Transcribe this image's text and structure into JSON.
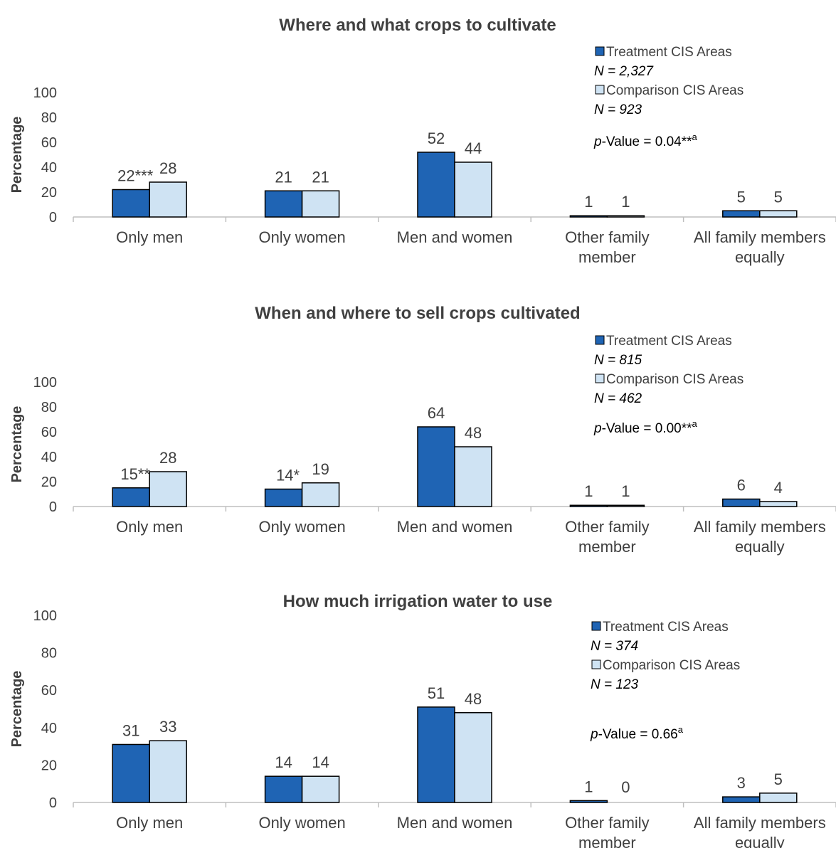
{
  "colors": {
    "treatment": "#1f64b4",
    "comparison": "#cfe3f3",
    "axis": "#bfbfbf",
    "bar_outline": "#000000"
  },
  "chart_data": [
    {
      "type": "bar",
      "title": "Where and what crops to cultivate",
      "ylabel": "Percentage",
      "ylim": [
        0,
        100
      ],
      "yticks": [
        "0",
        "20",
        "40",
        "60",
        "80",
        "100"
      ],
      "categories": [
        [
          "Only men"
        ],
        [
          "Only women"
        ],
        [
          "Men and women"
        ],
        [
          "Other family",
          "member"
        ],
        [
          "All family members",
          "equally"
        ]
      ],
      "series": [
        {
          "name": "Treatment CIS Areas",
          "n": "N = 2,327",
          "values": [
            22,
            21,
            52,
            1,
            5
          ],
          "labels": [
            "22***",
            "21",
            "52",
            "1",
            "5"
          ]
        },
        {
          "name": "Comparison CIS Areas",
          "n": "N = 923",
          "values": [
            28,
            21,
            44,
            1,
            5
          ],
          "labels": [
            "28",
            "21",
            "44",
            "1",
            "5"
          ]
        }
      ],
      "p_value": {
        "prefix": "p",
        "text": "-Value = 0.04**",
        "sup": "a"
      },
      "legend": "top-right"
    },
    {
      "type": "bar",
      "title": "When and where to sell crops cultivated",
      "ylabel": "Percentage",
      "ylim": [
        0,
        100
      ],
      "yticks": [
        "0",
        "20",
        "40",
        "60",
        "80",
        "100"
      ],
      "categories": [
        [
          "Only men"
        ],
        [
          "Only women"
        ],
        [
          "Men and women"
        ],
        [
          "Other family",
          "member"
        ],
        [
          "All family members",
          "equally"
        ]
      ],
      "series": [
        {
          "name": "Treatment CIS Areas",
          "n": "N = 815",
          "values": [
            15,
            14,
            64,
            1,
            6
          ],
          "labels": [
            "15**",
            "14*",
            "64",
            "1",
            "6"
          ]
        },
        {
          "name": "Comparison CIS Areas",
          "n": "N = 462",
          "values": [
            28,
            19,
            48,
            1,
            4
          ],
          "labels": [
            "28",
            "19",
            "48",
            "1",
            "4"
          ]
        }
      ],
      "p_value": {
        "prefix": "p",
        "text": "-Value = 0.00**",
        "sup": "a"
      },
      "legend": "top-right"
    },
    {
      "type": "bar",
      "title": "How much irrigation water to use",
      "ylabel": "Percentage",
      "ylim": [
        0,
        100
      ],
      "yticks": [
        "0",
        "20",
        "40",
        "60",
        "80",
        "100"
      ],
      "categories": [
        [
          "Only men"
        ],
        [
          "Only women"
        ],
        [
          "Men and women"
        ],
        [
          "Other family",
          "member"
        ],
        [
          "All family members",
          "equally"
        ]
      ],
      "series": [
        {
          "name": "Treatment CIS Areas",
          "n": "N = 374",
          "values": [
            31,
            14,
            51,
            1,
            3
          ],
          "labels": [
            "31",
            "14",
            "51",
            "1",
            "3"
          ]
        },
        {
          "name": "Comparison CIS Areas",
          "n": "N = 123",
          "values": [
            33,
            14,
            48,
            0,
            5
          ],
          "labels": [
            "33",
            "14",
            "48",
            "0",
            "5"
          ]
        }
      ],
      "p_value": {
        "prefix": "p",
        "text": "-Value = 0.66",
        "sup": "a"
      },
      "legend": "top-right"
    }
  ]
}
